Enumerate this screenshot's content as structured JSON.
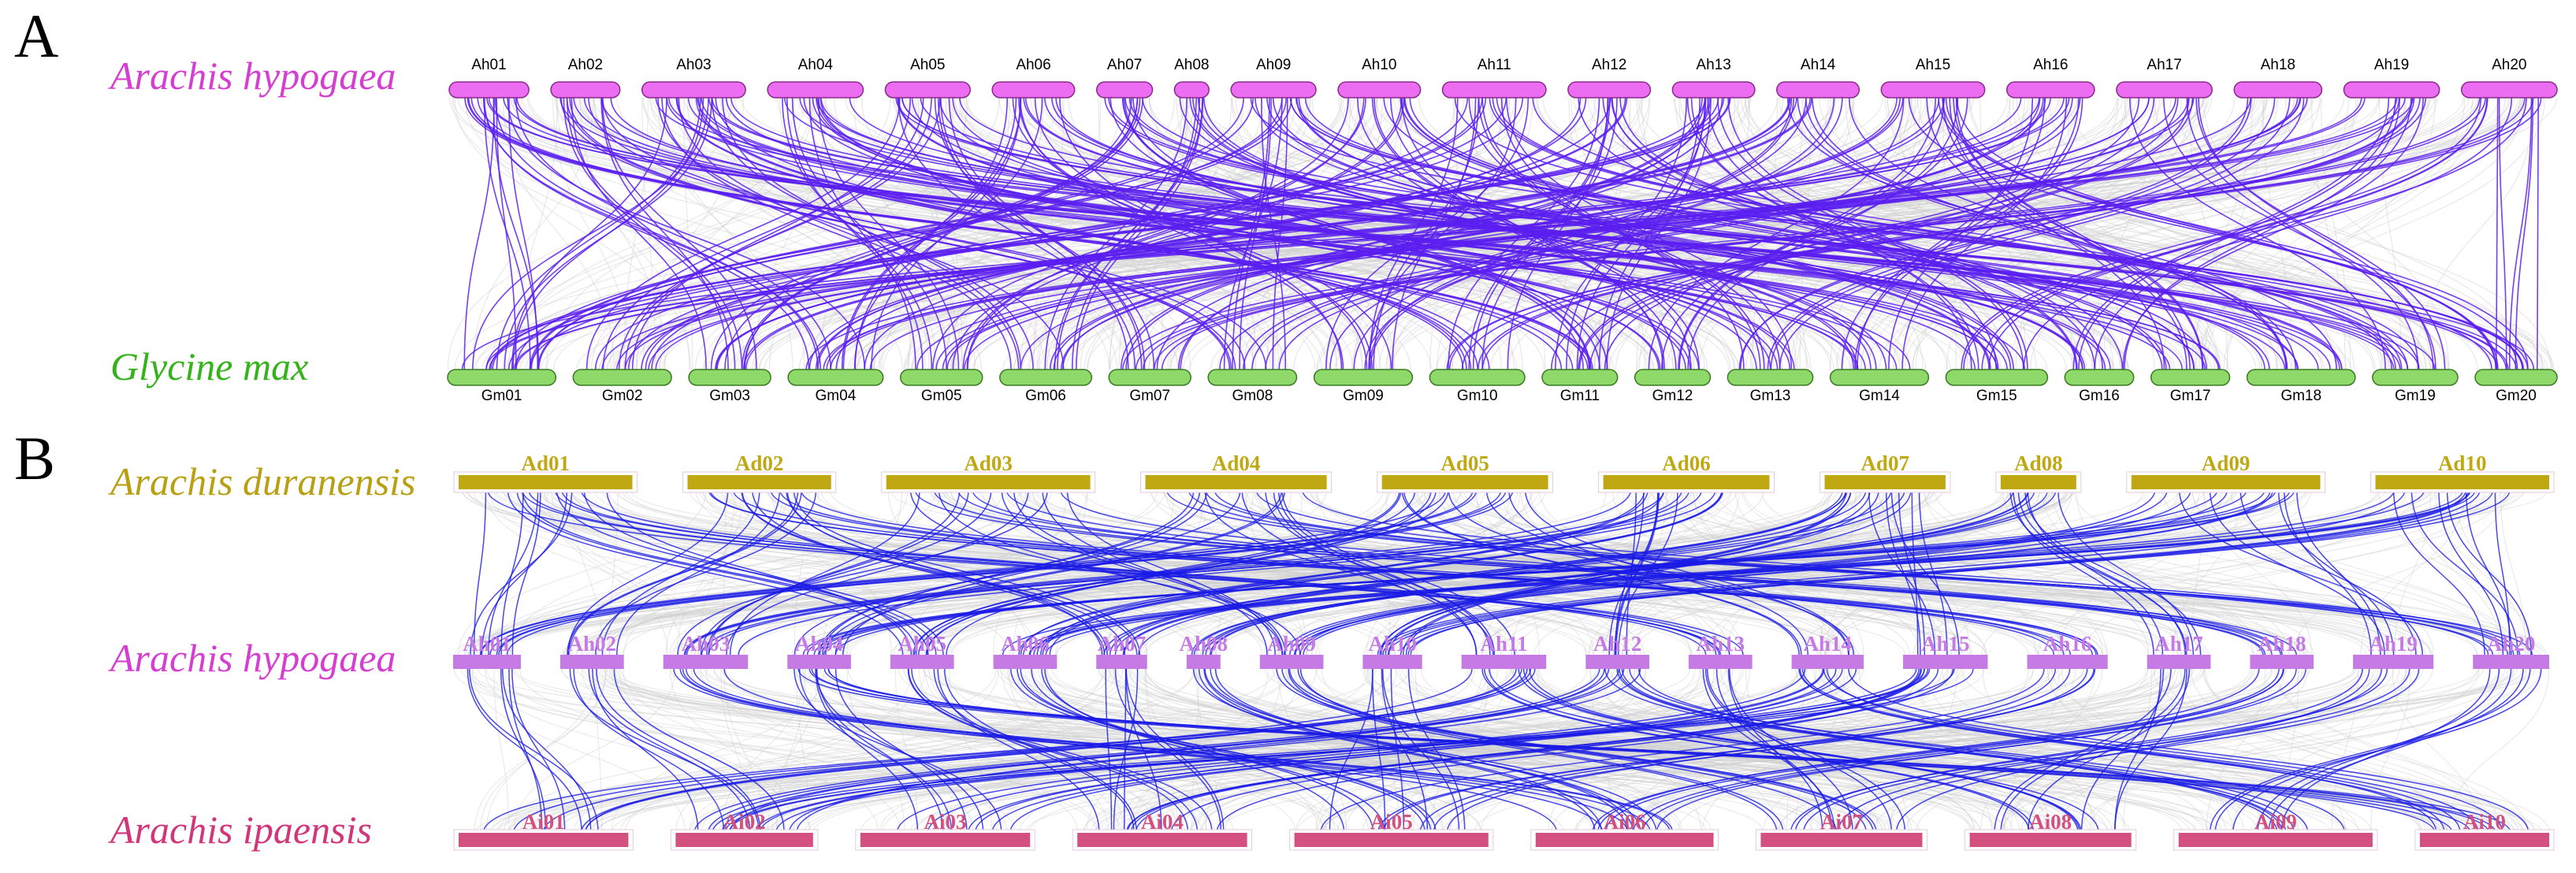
{
  "panels": [
    {
      "letter": "A",
      "tracks": [
        {
          "species": "Arachis hypogaea",
          "species_color": "#d53fd1",
          "bar_color": "#ec6cf2",
          "chromosomes": [
            "Ah01",
            "Ah02",
            "Ah03",
            "Ah04",
            "Ah05",
            "Ah06",
            "Ah07",
            "Ah08",
            "Ah09",
            "Ah10",
            "Ah11",
            "Ah12",
            "Ah13",
            "Ah14",
            "Ah15",
            "Ah16",
            "Ah17",
            "Ah18",
            "Ah19",
            "Ah20"
          ],
          "lengths": [
            3.0,
            2.6,
            3.9,
            3.6,
            3.2,
            3.1,
            2.1,
            1.3,
            3.2,
            3.1,
            3.9,
            3.1,
            3.1,
            3.1,
            3.9,
            3.3,
            3.6,
            3.3,
            3.6,
            3.6
          ]
        },
        {
          "species": "Glycine max",
          "species_color": "#34b31a",
          "bar_color": "#8fd96a",
          "chromosomes": [
            "Gm01",
            "Gm02",
            "Gm03",
            "Gm04",
            "Gm05",
            "Gm06",
            "Gm07",
            "Gm08",
            "Gm09",
            "Gm10",
            "Gm11",
            "Gm12",
            "Gm13",
            "Gm14",
            "Gm15",
            "Gm16",
            "Gm17",
            "Gm18",
            "Gm19",
            "Gm20"
          ],
          "lengths": [
            3.3,
            3.0,
            2.5,
            2.9,
            2.5,
            2.8,
            2.5,
            2.7,
            3.0,
            2.9,
            2.3,
            2.3,
            2.6,
            3.0,
            3.1,
            2.1,
            2.4,
            3.3,
            2.6,
            2.5
          ]
        }
      ],
      "link_color": "#5a1ff0",
      "links": [
        [
          0,
          0
        ],
        [
          0,
          3
        ],
        [
          0,
          10
        ],
        [
          0,
          16
        ],
        [
          1,
          2
        ],
        [
          1,
          7
        ],
        [
          1,
          13
        ],
        [
          2,
          0
        ],
        [
          2,
          5
        ],
        [
          2,
          9
        ],
        [
          2,
          14
        ],
        [
          2,
          18
        ],
        [
          3,
          4
        ],
        [
          3,
          11
        ],
        [
          3,
          17
        ],
        [
          4,
          1
        ],
        [
          4,
          6
        ],
        [
          4,
          12
        ],
        [
          4,
          19
        ],
        [
          5,
          3
        ],
        [
          5,
          8
        ],
        [
          5,
          15
        ],
        [
          6,
          2
        ],
        [
          6,
          10
        ],
        [
          6,
          17
        ],
        [
          7,
          5
        ],
        [
          7,
          13
        ],
        [
          8,
          0
        ],
        [
          8,
          7
        ],
        [
          8,
          14
        ],
        [
          8,
          19
        ],
        [
          9,
          4
        ],
        [
          9,
          11
        ],
        [
          9,
          16
        ],
        [
          10,
          1
        ],
        [
          10,
          8
        ],
        [
          10,
          12
        ],
        [
          10,
          18
        ],
        [
          11,
          3
        ],
        [
          11,
          9
        ],
        [
          11,
          15
        ],
        [
          12,
          0
        ],
        [
          12,
          6
        ],
        [
          12,
          10
        ],
        [
          12,
          14
        ],
        [
          13,
          2
        ],
        [
          13,
          8
        ],
        [
          13,
          17
        ],
        [
          14,
          5
        ],
        [
          14,
          11
        ],
        [
          14,
          16
        ],
        [
          14,
          19
        ],
        [
          15,
          1
        ],
        [
          15,
          7
        ],
        [
          15,
          13
        ],
        [
          16,
          4
        ],
        [
          16,
          10
        ],
        [
          16,
          18
        ],
        [
          17,
          3
        ],
        [
          17,
          12
        ],
        [
          18,
          0
        ],
        [
          18,
          9
        ],
        [
          18,
          15
        ],
        [
          19,
          6
        ],
        [
          19,
          14
        ],
        [
          19,
          19
        ]
      ]
    },
    {
      "letter": "B",
      "tracks": [
        {
          "species": "Arachis duranensis",
          "species_color": "#b8a012",
          "bar_color": "#c0a812",
          "chromosomes": [
            "Ad01",
            "Ad02",
            "Ad03",
            "Ad04",
            "Ad05",
            "Ad06",
            "Ad07",
            "Ad08",
            "Ad09",
            "Ad10"
          ],
          "lengths": [
            2.3,
            1.9,
            2.7,
            2.4,
            2.2,
            2.2,
            1.6,
            1.0,
            2.5,
            2.3
          ]
        },
        {
          "species": "Arachis hypogaea",
          "species_color": "#d53fd1",
          "bar_color": "#c57be3",
          "chromosomes": [
            "Ah01",
            "Ah02",
            "Ah03",
            "Ah04",
            "Ah05",
            "Ah06",
            "Ah07",
            "Ah08",
            "Ah09",
            "Ah10",
            "Ah11",
            "Ah12",
            "Ah13",
            "Ah14",
            "Ah15",
            "Ah16",
            "Ah17",
            "Ah18",
            "Ah19",
            "Ah20"
          ],
          "lengths": [
            1.6,
            1.5,
            2.0,
            1.5,
            1.5,
            1.5,
            1.2,
            0.8,
            1.5,
            1.4,
            2.0,
            1.5,
            1.5,
            1.7,
            2.0,
            1.9,
            1.5,
            1.5,
            1.9,
            1.8
          ]
        },
        {
          "species": "Arachis ipaensis",
          "species_color": "#d1357a",
          "bar_color": "#d4507f",
          "chromosomes": [
            "Ai01",
            "Ai02",
            "Ai03",
            "Ai04",
            "Ai05",
            "Ai06",
            "Ai07",
            "Ai08",
            "Ai09",
            "Ai10"
          ],
          "lengths": [
            2.1,
            1.7,
            2.1,
            2.1,
            2.4,
            2.2,
            2.0,
            2.0,
            2.4,
            1.6
          ]
        }
      ],
      "link_color": "#1a1ae6",
      "links_upper": [
        [
          0,
          0
        ],
        [
          0,
          4
        ],
        [
          0,
          12
        ],
        [
          1,
          1
        ],
        [
          1,
          6
        ],
        [
          1,
          15
        ],
        [
          2,
          2
        ],
        [
          2,
          8
        ],
        [
          2,
          17
        ],
        [
          3,
          3
        ],
        [
          3,
          10
        ],
        [
          3,
          19
        ],
        [
          4,
          4
        ],
        [
          4,
          0
        ],
        [
          4,
          13
        ],
        [
          5,
          5
        ],
        [
          5,
          11
        ],
        [
          5,
          2
        ],
        [
          6,
          6
        ],
        [
          6,
          14
        ],
        [
          6,
          9
        ],
        [
          7,
          7
        ],
        [
          7,
          16
        ],
        [
          8,
          8
        ],
        [
          8,
          18
        ],
        [
          8,
          3
        ],
        [
          9,
          9
        ],
        [
          9,
          19
        ],
        [
          9,
          5
        ]
      ],
      "links_lower": [
        [
          0,
          0
        ],
        [
          1,
          1
        ],
        [
          3,
          2
        ],
        [
          4,
          3
        ],
        [
          5,
          4
        ],
        [
          7,
          5
        ],
        [
          8,
          6
        ],
        [
          10,
          7
        ],
        [
          11,
          8
        ],
        [
          13,
          9
        ],
        [
          10,
          0
        ],
        [
          11,
          1
        ],
        [
          13,
          2
        ],
        [
          14,
          3
        ],
        [
          15,
          4
        ],
        [
          17,
          5
        ],
        [
          18,
          6
        ],
        [
          19,
          8
        ],
        [
          2,
          5
        ],
        [
          6,
          3
        ],
        [
          9,
          4
        ],
        [
          12,
          6
        ],
        [
          16,
          7
        ],
        [
          3,
          9
        ],
        [
          14,
          1
        ]
      ]
    }
  ]
}
